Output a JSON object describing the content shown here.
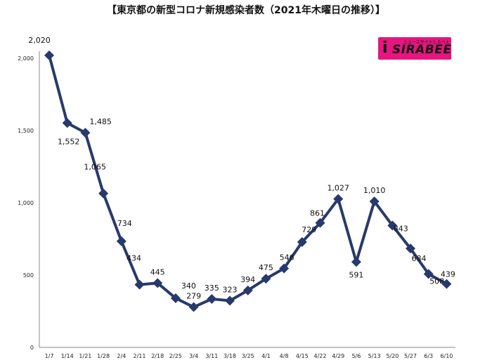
{
  "title": "【東京都の新型コロナ新規感染者数（2021年木曜日の推移）】",
  "logo": {
    "text": "SIRABEE",
    "subtext": "ニュースサイトしらべぇ"
  },
  "colors": {
    "line": "#283a6b",
    "marker": "#283a6b",
    "logo_bg": "#e6157f",
    "axis": "#888888"
  },
  "chart_data": {
    "type": "line",
    "title": "【東京都の新型コロナ新規感染者数（2021年木曜日の推移）】",
    "xlabel": "",
    "ylabel": "",
    "ylim": [
      0,
      2000
    ],
    "yticks": [
      0,
      500,
      1000,
      1500,
      2000
    ],
    "ytick_labels": [
      "0",
      "500",
      "1,000",
      "1,500",
      "2,000"
    ],
    "grid": false,
    "categories": [
      "1/7",
      "1/14",
      "1/21",
      "1/28",
      "2/4",
      "2/11",
      "2/18",
      "2/25",
      "3/4",
      "3/11",
      "3/18",
      "3/25",
      "4/1",
      "4/8",
      "4/15",
      "4/22",
      "4/29",
      "5/6",
      "5/13",
      "5/20",
      "5/27",
      "6/3",
      "6/10"
    ],
    "values": [
      2020,
      1552,
      1485,
      1065,
      734,
      434,
      445,
      340,
      279,
      335,
      323,
      394,
      475,
      546,
      729,
      861,
      1027,
      591,
      1010,
      843,
      684,
      508,
      439
    ],
    "value_labels": [
      "2,020",
      "1,552",
      "1,485",
      "1,065",
      "734",
      "434",
      "445",
      "340",
      "279",
      "335",
      "323",
      "394",
      "475",
      "546",
      "729",
      "861",
      "1,027",
      "591",
      "1,010",
      "843",
      "684",
      "508",
      "439"
    ],
    "label_positions": [
      "above",
      "below",
      "right",
      "below",
      "right",
      "above",
      "above",
      "right",
      "above",
      "above",
      "above",
      "above",
      "above",
      "above",
      "above",
      "above",
      "above",
      "below",
      "above",
      "below",
      "below",
      "below",
      "above"
    ]
  }
}
